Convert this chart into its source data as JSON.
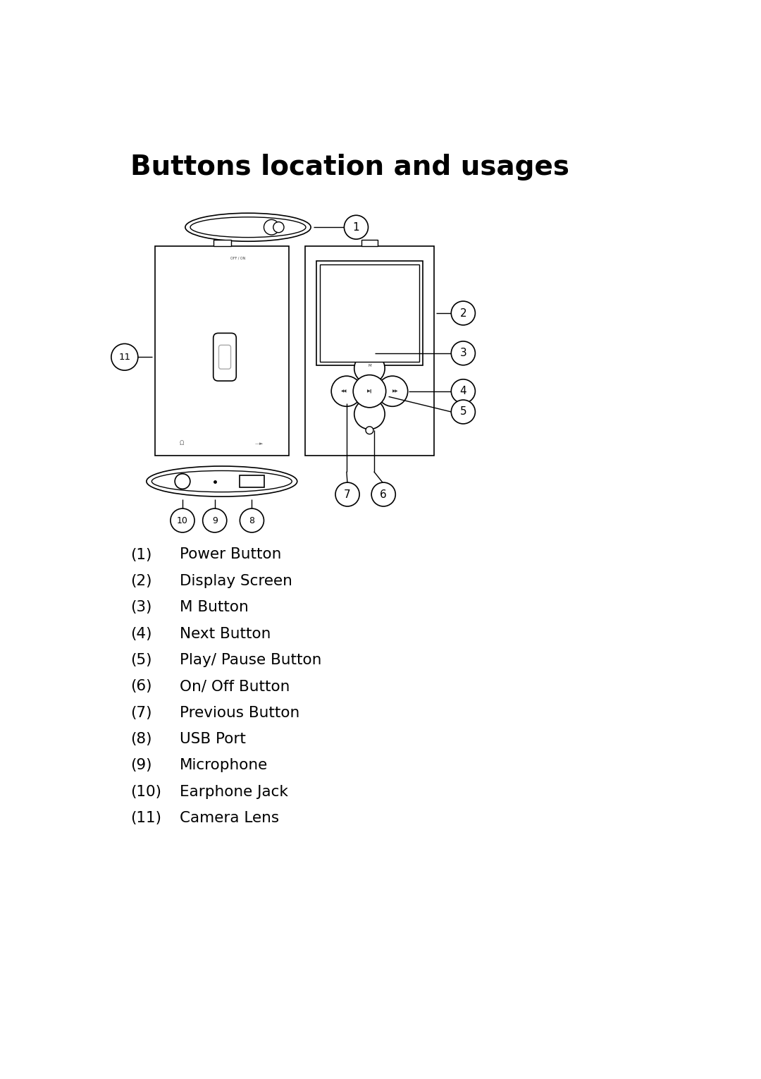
{
  "title": "Buttons location and usages",
  "title_fontsize": 28,
  "title_fontweight": "bold",
  "background_color": "#ffffff",
  "text_color": "#000000",
  "line_color": "#000000",
  "label_items": [
    [
      "(1)",
      "Power Button"
    ],
    [
      "(2)",
      "Display Screen"
    ],
    [
      "(3)",
      "M Button"
    ],
    [
      "(4)",
      "Next Button"
    ],
    [
      "(5)",
      "Play/ Pause Button"
    ],
    [
      "(6)",
      "On/ Off Button"
    ],
    [
      "(7)",
      "Previous Button"
    ],
    [
      "(8)",
      "USB Port"
    ],
    [
      "(9)",
      "Microphone"
    ],
    [
      "(10)",
      "Earphone Jack"
    ],
    [
      "(11)",
      "Camera Lens"
    ]
  ],
  "label_fontsize": 15.5
}
